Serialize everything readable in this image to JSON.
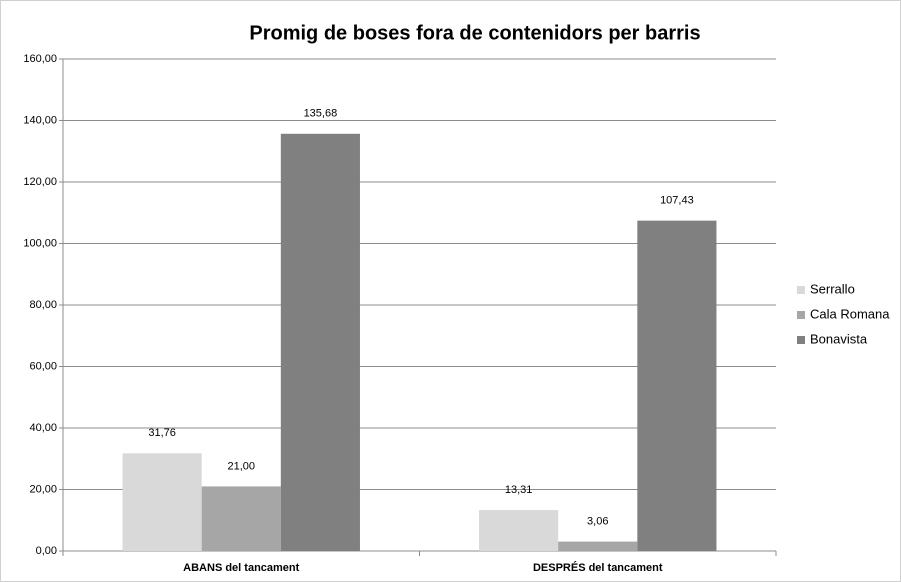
{
  "chart_data": {
    "type": "bar",
    "title": "Promig de boses fora de contenidors per barris",
    "categories": [
      "ABANS del tancament",
      "DESPRÉS del tancament"
    ],
    "series": [
      {
        "name": "Serrallo",
        "color": "#d9d9d9",
        "values": [
          31.76,
          13.31
        ],
        "value_labels": [
          "31,76",
          "13,31"
        ]
      },
      {
        "name": "Cala Romana",
        "color": "#a6a6a6",
        "values": [
          21.0,
          3.06
        ],
        "value_labels": [
          "21,00",
          "3,06"
        ]
      },
      {
        "name": "Bonavista",
        "color": "#808080",
        "values": [
          135.68,
          107.43
        ],
        "value_labels": [
          "135,68",
          "107,43"
        ]
      }
    ],
    "ylim": [
      0,
      160
    ],
    "yticks": [
      {
        "value": 0,
        "label": "0,00"
      },
      {
        "value": 20,
        "label": "20,00"
      },
      {
        "value": 40,
        "label": "40,00"
      },
      {
        "value": 60,
        "label": "60,00"
      },
      {
        "value": 80,
        "label": "80,00"
      },
      {
        "value": 100,
        "label": "100,00"
      },
      {
        "value": 120,
        "label": "120,00"
      },
      {
        "value": 140,
        "label": "140,00"
      },
      {
        "value": 160,
        "label": "160,00"
      }
    ],
    "grid": true,
    "legend": "right"
  }
}
